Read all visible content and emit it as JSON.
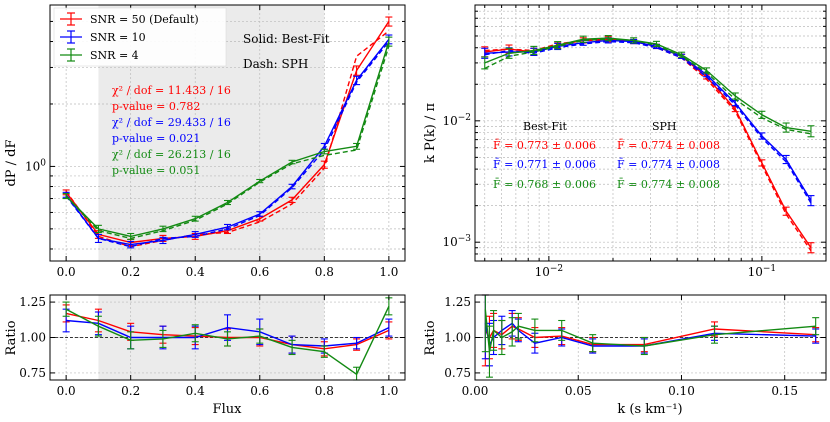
{
  "chart_data": [
    {
      "id": "pdf",
      "type": "line",
      "xscale": "linear",
      "yscale": "log",
      "xlim": [
        -0.05,
        1.05
      ],
      "ylim": [
        0.35,
        6.0
      ],
      "xticks": [
        0.0,
        0.2,
        0.4,
        0.6,
        0.8,
        1.0
      ],
      "xtick_labels": [
        "0.0",
        "0.2",
        "0.4",
        "0.6",
        "0.8",
        "1.0"
      ],
      "yticks": [
        1.0
      ],
      "ytick_labels": [
        "10^0"
      ],
      "xlabel": "",
      "ylabel": "dP / dF",
      "shaded_region": [
        0.1,
        0.8
      ],
      "x": [
        0.0,
        0.1,
        0.2,
        0.3,
        0.4,
        0.5,
        0.6,
        0.7,
        0.8,
        0.9,
        1.0
      ],
      "series": [
        {
          "name": "SNR = 50 (Default)",
          "color": "#ff0000",
          "bestfit": [
            0.75,
            0.47,
            0.43,
            0.45,
            0.46,
            0.49,
            0.56,
            0.69,
            1.02,
            2.9,
            5.0
          ],
          "sph": [
            0.76,
            0.46,
            0.41,
            0.44,
            0.47,
            0.48,
            0.54,
            0.66,
            0.98,
            3.4,
            4.5
          ],
          "err": [
            0.02,
            0.02,
            0.015,
            0.015,
            0.015,
            0.015,
            0.015,
            0.02,
            0.04,
            0.15,
            0.25
          ]
        },
        {
          "name": "SNR = 10",
          "color": "#0000ff",
          "bestfit": [
            0.73,
            0.45,
            0.42,
            0.44,
            0.47,
            0.51,
            0.59,
            0.8,
            1.25,
            2.6,
            4.1
          ],
          "sph": [
            0.72,
            0.45,
            0.41,
            0.45,
            0.46,
            0.5,
            0.58,
            0.79,
            1.2,
            2.55,
            4.0
          ],
          "err": [
            0.02,
            0.02,
            0.015,
            0.015,
            0.015,
            0.015,
            0.015,
            0.02,
            0.04,
            0.12,
            0.2
          ]
        },
        {
          "name": "SNR = 4",
          "color": "#138a13",
          "bestfit": [
            0.72,
            0.5,
            0.46,
            0.5,
            0.56,
            0.67,
            0.85,
            1.05,
            1.18,
            1.25,
            4.0
          ],
          "sph": [
            0.72,
            0.49,
            0.45,
            0.49,
            0.55,
            0.66,
            0.84,
            1.03,
            1.13,
            1.2,
            3.8
          ],
          "err": [
            0.02,
            0.02,
            0.015,
            0.015,
            0.015,
            0.015,
            0.015,
            0.02,
            0.03,
            0.04,
            0.2
          ]
        }
      ],
      "legend": {
        "location": "top-left",
        "entries": [
          "SNR = 50 (Default)",
          "SNR = 10",
          "SNR = 4"
        ]
      },
      "annotations": {
        "style_note": [
          "Solid: Best-Fit",
          "Dash: SPH"
        ],
        "chi2": [
          {
            "chi": "χ² / dof = 11.433 / 16",
            "p": "p-value = 0.782",
            "color": "#ff0000"
          },
          {
            "chi": "χ² / dof = 29.433 / 16",
            "p": "p-value = 0.021",
            "color": "#0000ff"
          },
          {
            "chi": "χ² / dof = 26.213 / 16",
            "p": "p-value = 0.051",
            "color": "#138a13"
          }
        ]
      }
    },
    {
      "id": "pk",
      "type": "line",
      "xscale": "log",
      "yscale": "log",
      "xlim": [
        0.0045,
        0.2
      ],
      "ylim": [
        0.0007,
        0.09
      ],
      "xticks": [
        0.01,
        0.1
      ],
      "xtick_labels": [
        "10^-2",
        "10^-1"
      ],
      "yticks": [
        0.001,
        0.01
      ],
      "ytick_labels": [
        "10^-3",
        "10^-2"
      ],
      "xlabel": "",
      "ylabel": "k P(k) / π",
      "x": [
        0.005,
        0.0065,
        0.0085,
        0.011,
        0.0145,
        0.019,
        0.025,
        0.032,
        0.042,
        0.055,
        0.075,
        0.1,
        0.13,
        0.17
      ],
      "series": [
        {
          "name": "SNR = 50 (Default)",
          "color": "#ff0000",
          "bestfit": [
            0.037,
            0.039,
            0.037,
            0.042,
            0.046,
            0.047,
            0.045,
            0.041,
            0.034,
            0.023,
            0.0125,
            0.0045,
            0.0018,
            0.0009
          ],
          "sph": [
            0.038,
            0.039,
            0.038,
            0.043,
            0.046,
            0.046,
            0.045,
            0.04,
            0.033,
            0.022,
            0.012,
            0.0043,
            0.0017,
            0.00085
          ],
          "err": [
            0.1,
            0.08,
            0.07,
            0.06,
            0.05,
            0.05,
            0.04,
            0.04,
            0.04,
            0.04,
            0.05,
            0.06,
            0.08,
            0.1
          ]
        },
        {
          "name": "SNR = 10",
          "color": "#0000ff",
          "bestfit": [
            0.036,
            0.037,
            0.037,
            0.041,
            0.044,
            0.046,
            0.045,
            0.041,
            0.034,
            0.024,
            0.014,
            0.0075,
            0.0048,
            0.0022
          ],
          "sph": [
            0.035,
            0.038,
            0.036,
            0.04,
            0.043,
            0.045,
            0.044,
            0.04,
            0.033,
            0.023,
            0.0135,
            0.0072,
            0.0046,
            0.0021
          ],
          "err": [
            0.1,
            0.08,
            0.07,
            0.06,
            0.05,
            0.05,
            0.04,
            0.04,
            0.04,
            0.04,
            0.05,
            0.06,
            0.08,
            0.1
          ]
        },
        {
          "name": "SNR = 4",
          "color": "#138a13",
          "bestfit": [
            0.03,
            0.036,
            0.038,
            0.042,
            0.047,
            0.048,
            0.046,
            0.043,
            0.035,
            0.026,
            0.016,
            0.0112,
            0.0088,
            0.0082
          ],
          "sph": [
            0.027,
            0.034,
            0.037,
            0.041,
            0.046,
            0.047,
            0.046,
            0.042,
            0.034,
            0.025,
            0.015,
            0.0106,
            0.0085,
            0.0078
          ],
          "err": [
            0.12,
            0.1,
            0.08,
            0.07,
            0.06,
            0.05,
            0.05,
            0.05,
            0.05,
            0.05,
            0.06,
            0.07,
            0.09,
            0.11
          ]
        }
      ],
      "annotations": {
        "col_headers": [
          "Best-Fit",
          "SPH"
        ],
        "fbar": [
          {
            "bestfit": "F̄ = 0.773 ± 0.006",
            "sph": "F̄ = 0.774 ± 0.008",
            "color": "#ff0000"
          },
          {
            "bestfit": "F̄ = 0.771 ± 0.006",
            "sph": "F̄ = 0.774 ± 0.008",
            "color": "#0000ff"
          },
          {
            "bestfit": "F̄ = 0.768 ± 0.006",
            "sph": "F̄ = 0.774 ± 0.008",
            "color": "#138a13"
          }
        ]
      }
    },
    {
      "id": "pdf_ratio",
      "type": "line",
      "xscale": "linear",
      "yscale": "linear",
      "xlim": [
        -0.05,
        1.05
      ],
      "ylim": [
        0.7,
        1.3
      ],
      "xticks": [
        0.0,
        0.2,
        0.4,
        0.6,
        0.8,
        1.0
      ],
      "xtick_labels": [
        "0.0",
        "0.2",
        "0.4",
        "0.6",
        "0.8",
        "1.0"
      ],
      "yticks": [
        0.75,
        1.0,
        1.25
      ],
      "ytick_labels": [
        "0.75",
        "1.00",
        "1.25"
      ],
      "xlabel": "Flux",
      "ylabel": "Ratio",
      "shaded_region": [
        0.1,
        0.8
      ],
      "reference_line": 1.0,
      "x": [
        0.0,
        0.1,
        0.2,
        0.3,
        0.4,
        0.5,
        0.6,
        0.7,
        0.8,
        0.9,
        1.0
      ],
      "series": [
        {
          "name": "SNR = 50 (Default)",
          "color": "#ff0000",
          "values": [
            1.17,
            1.12,
            1.04,
            1.02,
            1.01,
            1.0,
            1.0,
            0.95,
            0.92,
            0.95,
            1.05
          ],
          "err": [
            0.06,
            0.08,
            0.06,
            0.06,
            0.06,
            0.06,
            0.06,
            0.06,
            0.05,
            0.04,
            0.06
          ]
        },
        {
          "name": "SNR = 10",
          "color": "#0000ff",
          "values": [
            1.12,
            1.1,
            1.0,
            1.0,
            1.0,
            1.07,
            1.04,
            0.95,
            0.94,
            0.96,
            1.07
          ],
          "err": [
            0.08,
            0.08,
            0.08,
            0.08,
            0.08,
            0.09,
            0.09,
            0.06,
            0.05,
            0.04,
            0.06
          ]
        },
        {
          "name": "SNR = 4",
          "color": "#138a13",
          "values": [
            1.2,
            1.08,
            0.98,
            0.99,
            1.03,
            0.99,
            1.01,
            0.93,
            0.9,
            0.74,
            1.22
          ],
          "err": [
            0.05,
            0.07,
            0.06,
            0.06,
            0.06,
            0.05,
            0.05,
            0.05,
            0.04,
            0.05,
            0.06
          ]
        }
      ]
    },
    {
      "id": "pk_ratio",
      "type": "line",
      "xscale": "linear",
      "yscale": "linear",
      "xlim": [
        0.0,
        0.17
      ],
      "ylim": [
        0.7,
        1.3
      ],
      "xticks": [
        0.0,
        0.05,
        0.1,
        0.15
      ],
      "xtick_labels": [
        "0.00",
        "0.05",
        "0.10",
        "0.15"
      ],
      "yticks": [
        0.75,
        1.0,
        1.25
      ],
      "ytick_labels": [
        "0.75",
        "1.00",
        "1.25"
      ],
      "xlabel": "k (s km⁻¹)",
      "ylabel": "Ratio",
      "reference_line": 1.0,
      "x": [
        0.005,
        0.007,
        0.009,
        0.013,
        0.018,
        0.021,
        0.029,
        0.042,
        0.057,
        0.082,
        0.116,
        0.165
      ],
      "series": [
        {
          "name": "SNR = 50 (Default)",
          "color": "#ff0000",
          "values": [
            1.05,
            1.0,
            1.05,
            1.02,
            1.08,
            1.06,
            1.0,
            1.01,
            0.95,
            0.95,
            1.06,
            1.02
          ],
          "err": [
            0.25,
            0.15,
            0.12,
            0.1,
            0.09,
            0.08,
            0.07,
            0.06,
            0.05,
            0.05,
            0.05,
            0.05
          ]
        },
        {
          "name": "SNR = 10",
          "color": "#0000ff",
          "values": [
            1.1,
            0.95,
            1.0,
            1.05,
            1.1,
            1.05,
            0.96,
            1.0,
            0.94,
            0.94,
            1.03,
            1.01
          ],
          "err": [
            0.25,
            0.15,
            0.12,
            0.1,
            0.09,
            0.08,
            0.07,
            0.06,
            0.05,
            0.05,
            0.05,
            0.05
          ]
        },
        {
          "name": "SNR = 4",
          "color": "#138a13",
          "values": [
            1.2,
            0.9,
            1.05,
            1.0,
            1.04,
            1.08,
            1.05,
            1.05,
            0.96,
            0.94,
            1.02,
            1.08
          ],
          "err": [
            0.3,
            0.18,
            0.14,
            0.12,
            0.1,
            0.09,
            0.08,
            0.07,
            0.06,
            0.06,
            0.06,
            0.06
          ]
        }
      ]
    }
  ]
}
